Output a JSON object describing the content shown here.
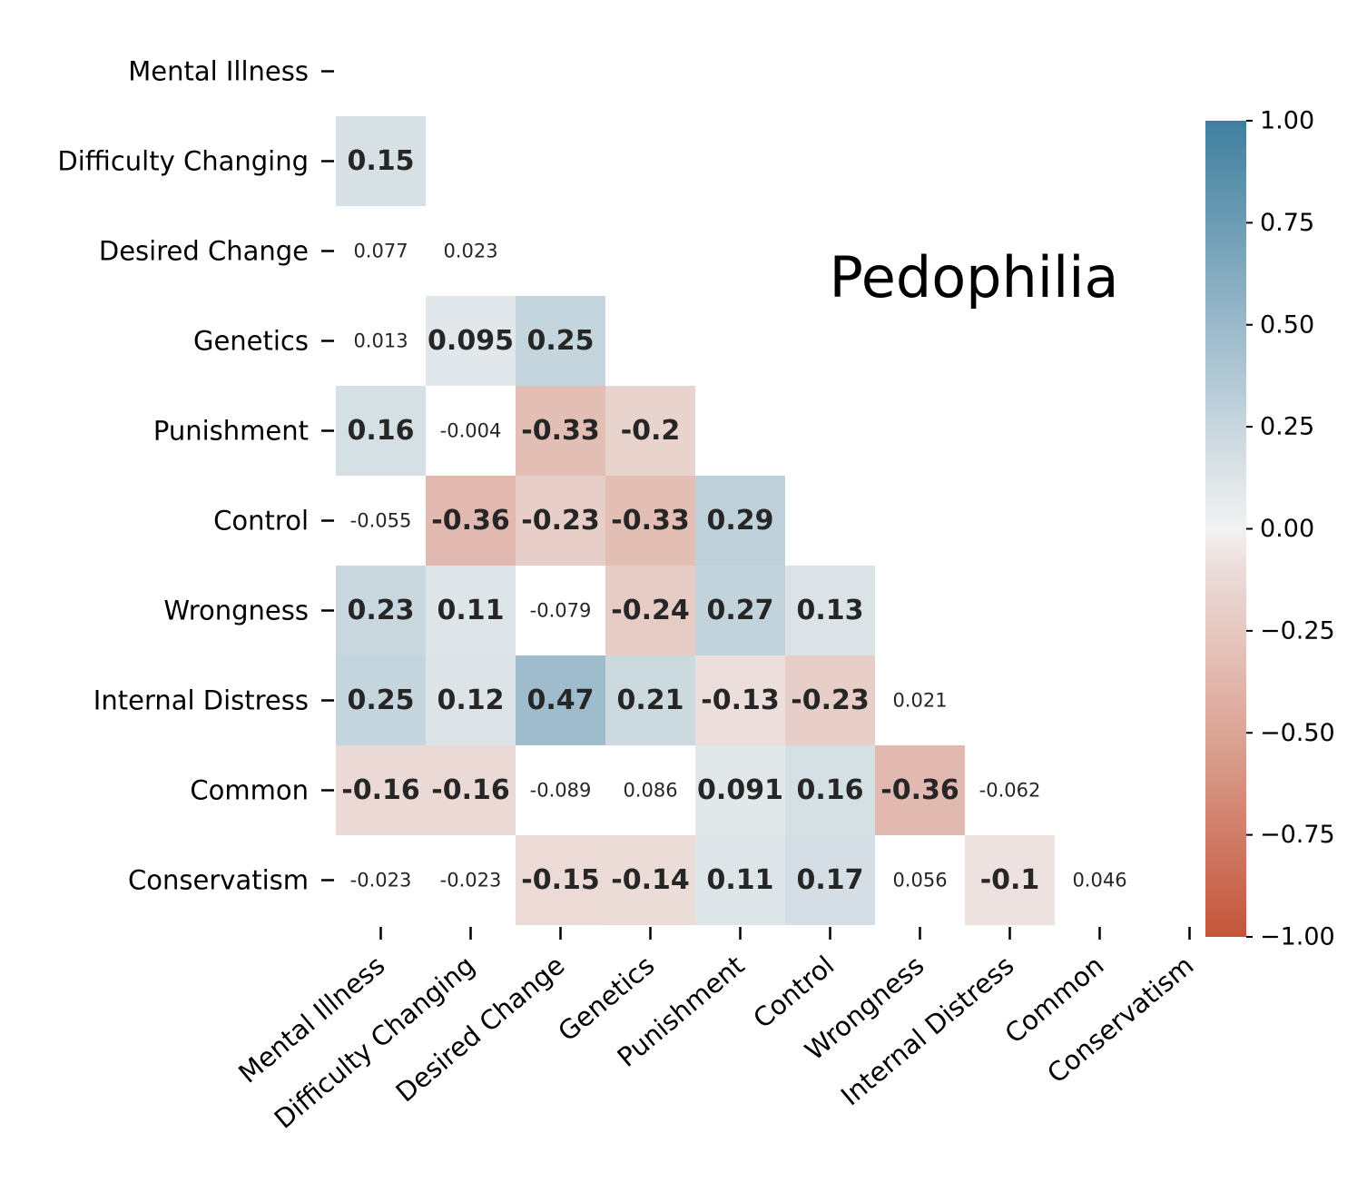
{
  "chart_data": {
    "type": "heatmap",
    "title": "Pedophilia",
    "variables": [
      "Mental Illness",
      "Difficulty Changing",
      "Desired Change",
      "Genetics",
      "Punishment",
      "Control",
      "Wrongness",
      "Internal Distress",
      "Common",
      "Conservatism"
    ],
    "lower_triangle": [
      [],
      [
        0.15
      ],
      [
        0.077,
        0.023
      ],
      [
        0.013,
        0.095,
        0.25
      ],
      [
        0.16,
        -0.004,
        -0.33,
        -0.2
      ],
      [
        -0.055,
        -0.36,
        -0.23,
        -0.33,
        0.29
      ],
      [
        0.23,
        0.11,
        -0.079,
        -0.24,
        0.27,
        0.13
      ],
      [
        0.25,
        0.12,
        0.47,
        0.21,
        -0.13,
        -0.23,
        0.021
      ],
      [
        -0.16,
        -0.16,
        -0.089,
        0.086,
        0.091,
        0.16,
        -0.36,
        -0.062
      ],
      [
        -0.023,
        -0.023,
        -0.15,
        -0.14,
        0.11,
        0.17,
        0.056,
        -0.1,
        0.046
      ]
    ],
    "color_range": [
      -1,
      1
    ],
    "colorbar_ticks": [
      "1.00",
      "0.75",
      "0.50",
      "0.25",
      "0.00",
      "−0.25",
      "−0.50",
      "−0.75",
      "−1.00"
    ],
    "colors": {
      "negative": "#c3553a",
      "neutral": "#f2f2f2",
      "positive": "#3f7f9e"
    },
    "significance_threshold": 0.09
  }
}
